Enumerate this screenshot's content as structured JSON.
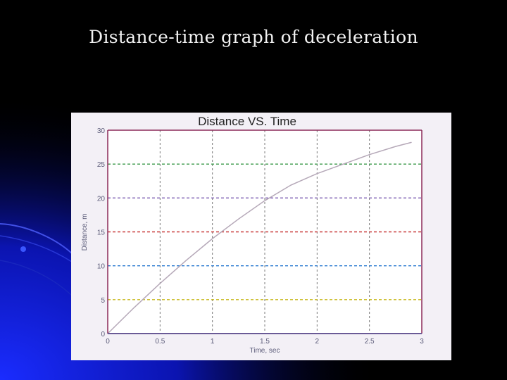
{
  "slide": {
    "title": "Distance-time graph of deceleration"
  },
  "chart_data": {
    "type": "line",
    "title": "Distance VS. Time",
    "xlabel": "Time, sec",
    "ylabel": "Distance, m",
    "xlim": [
      0,
      3
    ],
    "ylim": [
      0,
      30
    ],
    "xticks": [
      "0",
      "0.5",
      "1",
      "1.5",
      "2",
      "2.5",
      "3"
    ],
    "yticks": [
      "0",
      "5",
      "10",
      "15",
      "20",
      "25",
      "30"
    ],
    "grid": true,
    "series": [
      {
        "x": [
          0,
          0.25,
          0.5,
          0.75,
          1.0,
          1.25,
          1.5,
          1.75,
          2.0,
          2.25,
          2.5,
          2.75,
          2.9
        ],
        "values": [
          0,
          3.8,
          7.4,
          10.8,
          14.0,
          16.9,
          19.6,
          21.9,
          23.6,
          25.0,
          26.4,
          27.6,
          28.2
        ]
      }
    ],
    "colors": {
      "line": "#b5a8b8",
      "frame": "#8c2a58",
      "bottom_axis": "#6a5a96",
      "plot_bg": "#ffffff",
      "grid": [
        "#3a9a4a",
        "#c8b81a",
        "#2a7ad0",
        "#c83a3a",
        "#7a5ab0"
      ]
    }
  }
}
